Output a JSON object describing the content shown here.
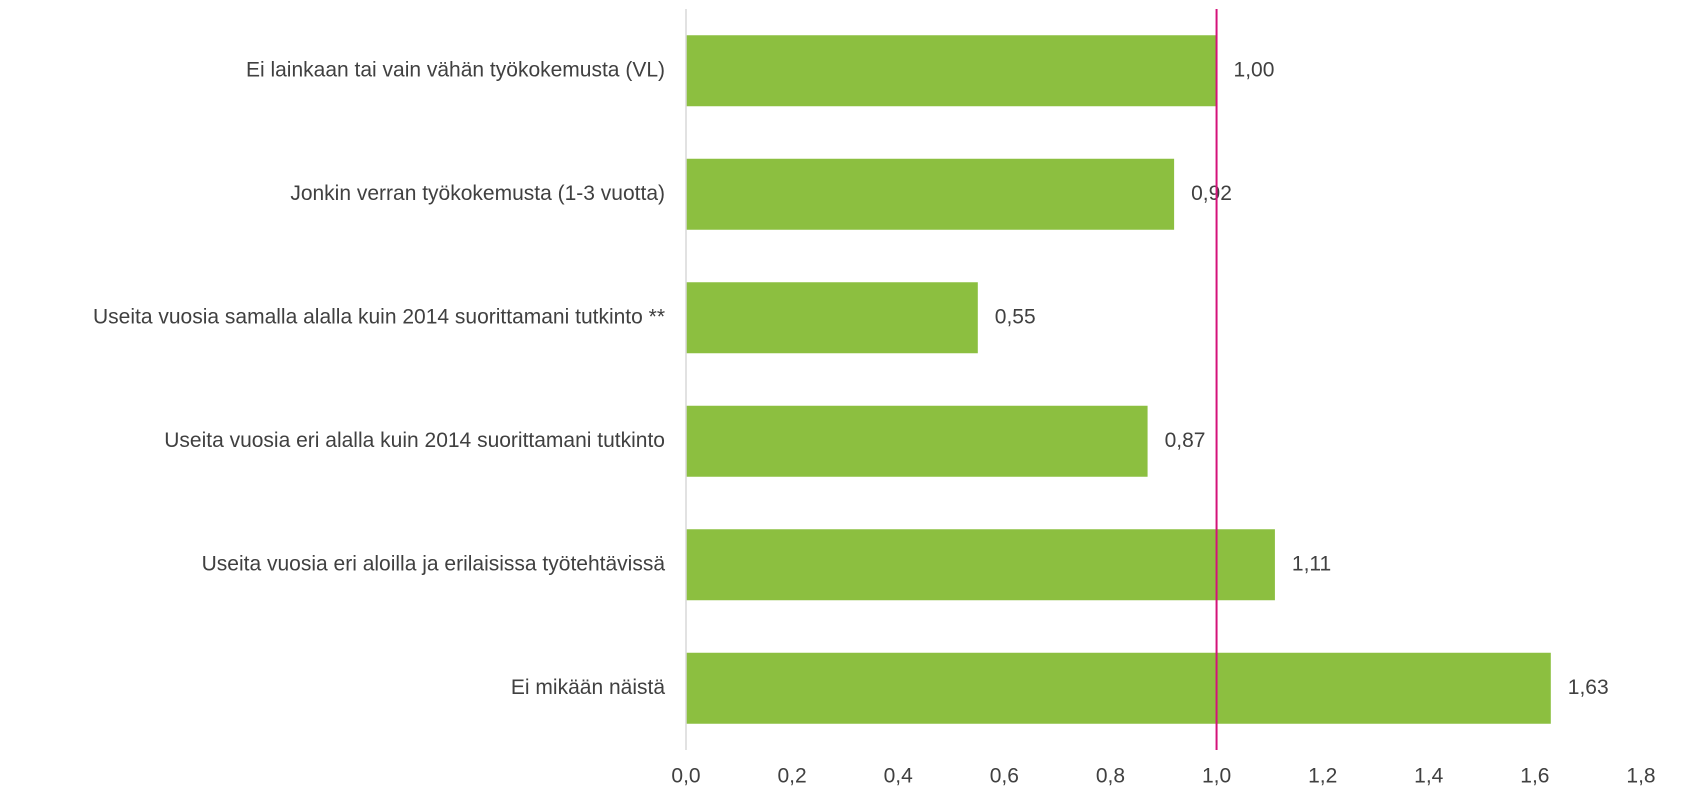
{
  "chart_data": {
    "type": "barh",
    "categories": [
      "Ei lainkaan tai vain vähän työkokemusta (VL)",
      "Jonkin verran työkokemusta (1-3 vuotta)",
      "Useita vuosia samalla alalla kuin 2014 suorittamani tutkinto **",
      "Useita vuosia eri alalla kuin 2014 suorittamani tutkinto",
      "Useita vuosia eri aloilla ja erilaisissa työtehtävissä",
      "Ei mikään näistä"
    ],
    "values": [
      1.0,
      0.92,
      0.55,
      0.87,
      1.11,
      1.63
    ],
    "value_labels": [
      "1,00",
      "0,92",
      "0,55",
      "0,87",
      "1,11",
      "1,63"
    ],
    "color": "#8cbf40",
    "xlim": [
      0,
      1.8
    ],
    "xticks": [
      {
        "value": 0,
        "label": "0,0"
      },
      {
        "value": 0.2,
        "label": "0,2"
      },
      {
        "value": 0.4,
        "label": "0,4"
      },
      {
        "value": 0.6,
        "label": "0,6"
      },
      {
        "value": 0.8,
        "label": "0,8"
      },
      {
        "value": 1.0,
        "label": "1,0"
      },
      {
        "value": 1.2,
        "label": "1,2"
      },
      {
        "value": 1.4,
        "label": "1,4"
      },
      {
        "value": 1.6,
        "label": "1,6"
      },
      {
        "value": 1.8,
        "label": "1,8"
      }
    ],
    "reference_line": {
      "value": 1.0,
      "color": "#d4127a"
    },
    "grid": false
  }
}
